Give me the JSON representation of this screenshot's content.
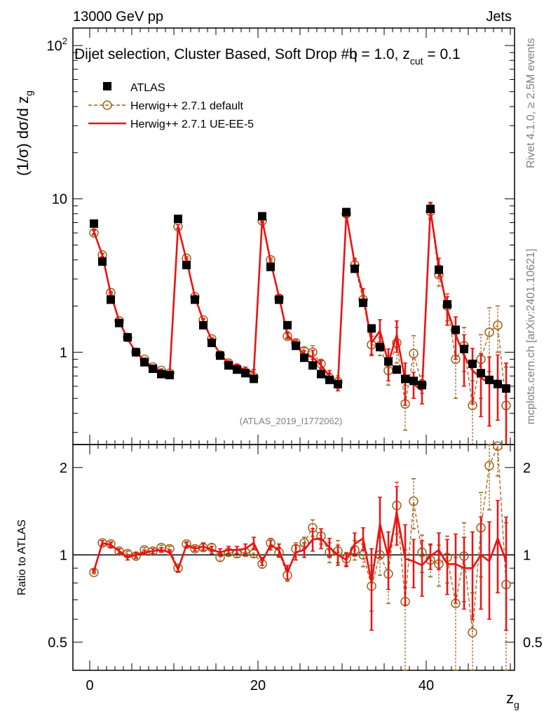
{
  "header": {
    "energy": "13000 GeV pp",
    "category": "Jets",
    "selection": "Dijet selection, Cluster Based, Soft Drop #b",
    "beta_text": "η = 1.0, z",
    "zcut_sub": "cut",
    "zcut_value": " = 0.1",
    "analysis_id": "(ATLAS_2019_I1772062)",
    "rivet_info": "Rivet 4.1.0, ≥ 2.5M events",
    "mcplots_info": "mcplots.cern.ch [arXiv:2401.10621]"
  },
  "chart_data": [
    {
      "type": "scatter",
      "panel": "main",
      "ylabel": "(1/σ) dσ/d z_g",
      "yscale": "log",
      "ylim": [
        0.25,
        130
      ],
      "xlim": [
        -2,
        50.5
      ],
      "yticks": [
        {
          "value": 1,
          "label": "1"
        },
        {
          "value": 10,
          "label": "10"
        },
        {
          "value": 100,
          "label": "10",
          "sup": "2"
        }
      ],
      "legend": {
        "position": "top-left",
        "entries": [
          "ATLAS",
          "Herwig++ 2.7.1 default",
          "Herwig++ 2.7.1 UE-EE-5"
        ]
      },
      "series": [
        {
          "name": "ATLAS",
          "style": "black-square",
          "x": [
            0.5,
            1.5,
            2.5,
            3.5,
            4.5,
            5.5,
            6.5,
            7.5,
            8.5,
            9.5,
            10.5,
            11.5,
            12.5,
            13.5,
            14.5,
            15.5,
            16.5,
            17.5,
            18.5,
            19.5,
            20.5,
            21.5,
            22.5,
            23.5,
            24.5,
            25.5,
            26.5,
            27.5,
            28.5,
            29.5,
            30.5,
            31.5,
            32.5,
            33.5,
            34.5,
            35.5,
            36.5,
            37.5,
            38.5,
            39.5,
            40.5,
            41.5,
            42.5,
            43.5,
            44.5,
            45.5,
            46.5,
            47.5,
            48.5,
            49.5
          ],
          "values": [
            6.9,
            3.9,
            2.2,
            1.55,
            1.25,
            1.0,
            0.86,
            0.78,
            0.72,
            0.71,
            7.4,
            3.7,
            2.2,
            1.5,
            1.15,
            0.95,
            0.82,
            0.77,
            0.73,
            0.67,
            7.7,
            3.6,
            2.2,
            1.5,
            1.1,
            0.92,
            0.82,
            0.72,
            0.66,
            0.62,
            8.2,
            3.5,
            2.1,
            1.43,
            1.08,
            0.87,
            0.77,
            0.67,
            0.65,
            0.61,
            8.6,
            3.45,
            2.05,
            1.4,
            1.05,
            0.84,
            0.73,
            0.66,
            0.62,
            0.58
          ]
        },
        {
          "name": "Herwig++ 2.7.1 default",
          "style": "brown-dashed-open-circle",
          "x": [
            0.5,
            1.5,
            2.5,
            3.5,
            4.5,
            5.5,
            6.5,
            7.5,
            8.5,
            9.5,
            10.5,
            11.5,
            12.5,
            13.5,
            14.5,
            15.5,
            16.5,
            17.5,
            18.5,
            19.5,
            20.5,
            21.5,
            22.5,
            23.5,
            24.5,
            25.5,
            26.5,
            27.5,
            28.5,
            29.5,
            30.5,
            31.5,
            32.5,
            33.5,
            34.5,
            35.5,
            36.5,
            37.5,
            38.5,
            39.5,
            40.5,
            41.5,
            42.5,
            43.5,
            44.5,
            45.5,
            46.5,
            47.5,
            48.5,
            49.5
          ],
          "values": [
            6.0,
            4.3,
            2.45,
            1.6,
            1.25,
            1.0,
            0.9,
            0.8,
            0.76,
            0.73,
            6.6,
            4.1,
            2.3,
            1.62,
            1.22,
            0.96,
            0.85,
            0.79,
            0.74,
            0.69,
            7.2,
            4.0,
            2.25,
            1.27,
            1.15,
            1.02,
            1.0,
            0.84,
            0.68,
            0.64,
            8.0,
            3.7,
            2.2,
            1.12,
            1.1,
            0.76,
            1.15,
            0.46,
            0.98,
            0.62,
            8.3,
            3.2,
            2.0,
            0.9,
            1.1,
            0.45,
            0.9,
            1.35,
            1.5,
            0.45
          ],
          "errors": [
            0.2,
            0.1,
            0.05,
            0.04,
            0.03,
            0.03,
            0.02,
            0.02,
            0.02,
            0.02,
            0.2,
            0.1,
            0.06,
            0.04,
            0.03,
            0.03,
            0.03,
            0.03,
            0.02,
            0.02,
            0.2,
            0.12,
            0.07,
            0.05,
            0.05,
            0.05,
            0.1,
            0.06,
            0.05,
            0.06,
            0.3,
            0.3,
            0.15,
            0.15,
            0.15,
            0.15,
            0.3,
            0.15,
            0.3,
            0.08,
            1.0,
            0.5,
            0.4,
            0.4,
            0.35,
            0.2,
            0.4,
            0.6,
            0.5,
            0.35
          ]
        },
        {
          "name": "Herwig++ 2.7.1 UE-EE-5",
          "style": "red-solid-line",
          "x": [
            0.5,
            1.5,
            2.5,
            3.5,
            4.5,
            5.5,
            6.5,
            7.5,
            8.5,
            9.5,
            10.5,
            11.5,
            12.5,
            13.5,
            14.5,
            15.5,
            16.5,
            17.5,
            18.5,
            19.5,
            20.5,
            21.5,
            22.5,
            23.5,
            24.5,
            25.5,
            26.5,
            27.5,
            28.5,
            29.5,
            30.5,
            31.5,
            32.5,
            33.5,
            34.5,
            35.5,
            36.5,
            37.5,
            38.5,
            39.5,
            40.5,
            41.5,
            42.5,
            43.5,
            44.5,
            45.5,
            46.5,
            47.5,
            48.5,
            49.5
          ],
          "values": [
            6.1,
            4.3,
            2.4,
            1.6,
            1.22,
            1.0,
            0.88,
            0.8,
            0.75,
            0.72,
            6.6,
            4.0,
            2.3,
            1.6,
            1.2,
            0.97,
            0.85,
            0.8,
            0.77,
            0.74,
            7.3,
            3.9,
            2.3,
            1.3,
            1.12,
            0.96,
            0.93,
            0.82,
            0.7,
            0.62,
            7.9,
            3.8,
            2.4,
            1.15,
            1.38,
            0.85,
            1.3,
            0.65,
            0.62,
            0.56,
            8.5,
            3.6,
            1.9,
            1.3,
            0.95,
            0.76,
            0.68,
            0.63,
            0.66,
            0.55
          ],
          "errors": [
            0.2,
            0.1,
            0.05,
            0.04,
            0.03,
            0.03,
            0.03,
            0.02,
            0.02,
            0.02,
            0.2,
            0.1,
            0.06,
            0.04,
            0.03,
            0.03,
            0.03,
            0.03,
            0.03,
            0.03,
            0.2,
            0.12,
            0.07,
            0.06,
            0.06,
            0.06,
            0.1,
            0.06,
            0.06,
            0.06,
            0.3,
            0.3,
            0.2,
            0.2,
            0.25,
            0.2,
            0.3,
            0.2,
            0.12,
            0.1,
            1.0,
            0.5,
            0.4,
            0.4,
            0.35,
            0.3,
            0.3,
            0.3,
            0.3,
            0.3
          ]
        }
      ]
    },
    {
      "type": "line",
      "panel": "ratio",
      "ylabel": "Ratio to ATLAS",
      "xlabel": "z_g",
      "yscale": "log",
      "ylim": [
        0.4,
        2.4
      ],
      "xlim": [
        -2,
        50.5
      ],
      "yticks": [
        {
          "value": 0.5,
          "label": "0.5"
        },
        {
          "value": 1,
          "label": "1"
        },
        {
          "value": 2,
          "label": "2"
        }
      ],
      "xticks": [
        {
          "value": 0,
          "label": "0"
        },
        {
          "value": 20,
          "label": "20"
        },
        {
          "value": 40,
          "label": "40"
        }
      ],
      "series": [
        {
          "name": "Herwig++ 2.7.1 default",
          "x": [
            0.5,
            1.5,
            2.5,
            3.5,
            4.5,
            5.5,
            6.5,
            7.5,
            8.5,
            9.5,
            10.5,
            11.5,
            12.5,
            13.5,
            14.5,
            15.5,
            16.5,
            17.5,
            18.5,
            19.5,
            20.5,
            21.5,
            22.5,
            23.5,
            24.5,
            25.5,
            26.5,
            27.5,
            28.5,
            29.5,
            30.5,
            31.5,
            32.5,
            33.5,
            34.5,
            35.5,
            36.5,
            37.5,
            38.5,
            39.5,
            40.5,
            41.5,
            42.5,
            43.5,
            44.5,
            45.5,
            46.5,
            47.5,
            48.5,
            49.5
          ],
          "values": [
            0.87,
            1.1,
            1.09,
            1.03,
            1.01,
            0.99,
            1.04,
            1.03,
            1.06,
            1.05,
            0.9,
            1.09,
            1.05,
            1.06,
            1.06,
            0.98,
            1.02,
            1.01,
            1.02,
            1.01,
            0.93,
            1.1,
            1.02,
            0.85,
            1.05,
            1.1,
            1.24,
            1.16,
            1.02,
            1.03,
            0.97,
            1.04,
            1.0,
            0.78,
            1.0,
            0.86,
            1.48,
            0.69,
            1.53,
            1.02,
            0.96,
            0.93,
            0.98,
            0.68,
            0.99,
            0.54,
            1.24,
            2.03,
            2.37,
            0.79
          ],
          "errors": [
            0.01,
            0.02,
            0.02,
            0.02,
            0.02,
            0.02,
            0.02,
            0.02,
            0.02,
            0.02,
            0.02,
            0.02,
            0.02,
            0.03,
            0.03,
            0.03,
            0.03,
            0.03,
            0.03,
            0.03,
            0.03,
            0.04,
            0.04,
            0.04,
            0.05,
            0.05,
            0.08,
            0.07,
            0.08,
            0.09,
            0.05,
            0.08,
            0.09,
            0.14,
            0.15,
            0.18,
            0.3,
            0.35,
            0.3,
            0.15,
            0.12,
            0.15,
            0.18,
            0.3,
            0.3,
            0.2,
            0.4,
            0.6,
            0.5,
            0.5
          ]
        },
        {
          "name": "Herwig++ 2.7.1 UE-EE-5",
          "x": [
            0.5,
            1.5,
            2.5,
            3.5,
            4.5,
            5.5,
            6.5,
            7.5,
            8.5,
            9.5,
            10.5,
            11.5,
            12.5,
            13.5,
            14.5,
            15.5,
            16.5,
            17.5,
            18.5,
            19.5,
            20.5,
            21.5,
            22.5,
            23.5,
            24.5,
            25.5,
            26.5,
            27.5,
            28.5,
            29.5,
            30.5,
            31.5,
            32.5,
            33.5,
            34.5,
            35.5,
            36.5,
            37.5,
            38.5,
            39.5,
            40.5,
            41.5,
            42.5,
            43.5,
            44.5,
            45.5,
            46.5,
            47.5,
            48.5,
            49.5
          ],
          "values": [
            0.88,
            1.1,
            1.08,
            1.03,
            0.98,
            1.0,
            1.02,
            1.03,
            1.04,
            1.02,
            0.89,
            1.08,
            1.05,
            1.07,
            1.04,
            1.02,
            1.04,
            1.04,
            1.05,
            1.1,
            0.95,
            1.08,
            1.04,
            0.87,
            1.02,
            1.04,
            1.13,
            1.14,
            1.06,
            1.0,
            0.96,
            1.09,
            1.14,
            0.8,
            1.28,
            0.98,
            1.4,
            0.97,
            0.95,
            0.92,
            0.99,
            1.04,
            0.93,
            0.93,
            0.9,
            0.9,
            1.0,
            0.95,
            1.14,
            0.95
          ],
          "errors": [
            0.01,
            0.02,
            0.02,
            0.02,
            0.02,
            0.02,
            0.02,
            0.02,
            0.02,
            0.02,
            0.02,
            0.02,
            0.02,
            0.03,
            0.03,
            0.03,
            0.03,
            0.03,
            0.04,
            0.05,
            0.03,
            0.04,
            0.05,
            0.05,
            0.06,
            0.06,
            0.1,
            0.09,
            0.08,
            0.08,
            0.05,
            0.1,
            0.1,
            0.25,
            0.3,
            0.22,
            0.32,
            0.3,
            0.18,
            0.2,
            0.1,
            0.15,
            0.2,
            0.25,
            0.25,
            0.3,
            0.35,
            0.35,
            0.4,
            0.4
          ]
        }
      ]
    }
  ]
}
